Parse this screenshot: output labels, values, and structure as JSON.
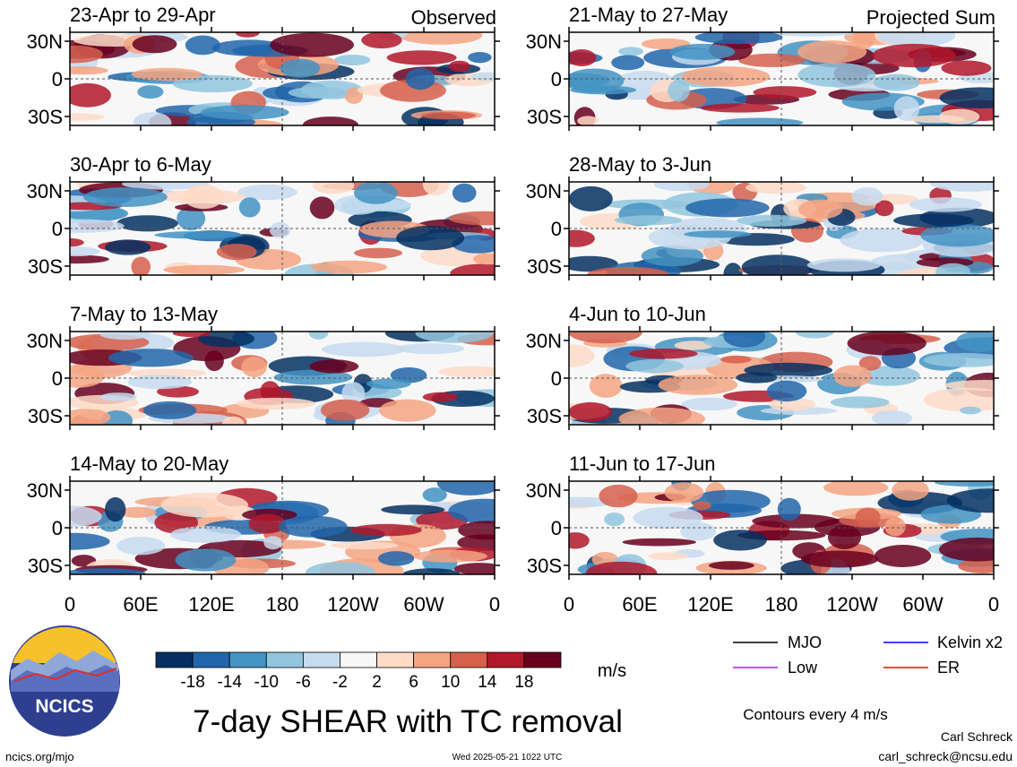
{
  "chart_data": [
    {
      "type": "heatmap",
      "column": "left",
      "title": "23-Apr to 29-Apr",
      "corner_label": "Observed"
    },
    {
      "type": "heatmap",
      "column": "left",
      "title": "30-Apr to 6-May",
      "corner_label": ""
    },
    {
      "type": "heatmap",
      "column": "left",
      "title": "7-May to 13-May",
      "corner_label": ""
    },
    {
      "type": "heatmap",
      "column": "left",
      "title": "14-May to 20-May",
      "corner_label": ""
    },
    {
      "type": "heatmap",
      "column": "right",
      "title": "21-May to 27-May",
      "corner_label": "Projected Sum"
    },
    {
      "type": "heatmap",
      "column": "right",
      "title": "28-May to 3-Jun",
      "corner_label": ""
    },
    {
      "type": "heatmap",
      "column": "right",
      "title": "4-Jun to 10-Jun",
      "corner_label": ""
    },
    {
      "type": "heatmap",
      "column": "right",
      "title": "11-Jun to 17-Jun",
      "corner_label": ""
    }
  ],
  "axes": {
    "y_ticks": [
      "30N",
      "0",
      "30S"
    ],
    "x_ticks": [
      "0",
      "60E",
      "120E",
      "180",
      "120W",
      "60W",
      "0"
    ]
  },
  "colorbar": {
    "labels": [
      "-18",
      "-14",
      "-10",
      "-6",
      "-2",
      "2",
      "6",
      "10",
      "14",
      "18"
    ],
    "colors": [
      "#053061",
      "#2166ac",
      "#4393c3",
      "#92c5de",
      "#c6dbef",
      "#f7f7f7",
      "#fddbc7",
      "#f4a582",
      "#d6604d",
      "#b2182b",
      "#67001f"
    ],
    "unit": "m/s"
  },
  "legend": [
    {
      "label": "MJO",
      "color": "#000000"
    },
    {
      "label": "Kelvin x2",
      "color": "#0000ff"
    },
    {
      "label": "Low",
      "color": "#a020f0"
    },
    {
      "label": "ER",
      "color": "#ff0000"
    }
  ],
  "main_title": "7-day SHEAR with TC removal",
  "contour_note": "Contours every 4 m/s",
  "logo_text": "NCICS",
  "footer": {
    "left": "ncics.org/mjo",
    "center": "Wed 2025-05-21 1022 UTC",
    "author": "Carl Schreck",
    "email": "carl_schreck@ncsu.edu"
  }
}
